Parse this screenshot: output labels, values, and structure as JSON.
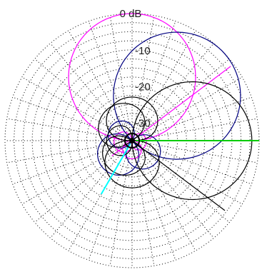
{
  "chart_data": {
    "type": "polar-radiation-pattern",
    "radial_axis": {
      "unit": "dB",
      "ring_levels_db": [
        0,
        -10,
        -20,
        -30
      ],
      "tick_labels": [
        "0 dB",
        "-10",
        "-20",
        "-30"
      ],
      "inner_ring_levels_db": [
        -2.5,
        -5,
        -7.5,
        -12.5,
        -15,
        -17.5,
        -22.5,
        -25,
        -27.5
      ],
      "grid": "dotted",
      "spoke_spacing_deg": 10
    },
    "grid": true,
    "legend": "none",
    "series": [
      {
        "color": "#ff00ff",
        "lobes": [
          {
            "direction_deg": 90,
            "peak_db": 0,
            "width": 1.0
          },
          {
            "direction_deg": 270,
            "peak_db": -30,
            "width": 0.9
          },
          {
            "direction_deg": 190,
            "peak_db": -30,
            "width": 0.7
          },
          {
            "direction_deg": 350,
            "peak_db": -31,
            "width": 0.7
          }
        ],
        "directions_deg": [
          37,
          217
        ],
        "direction_lines_db": [
          -1,
          -28
        ]
      },
      {
        "color": "#000080",
        "lobes": [
          {
            "direction_deg": 45,
            "peak_db": 0,
            "width": 1.0
          },
          {
            "direction_deg": 150,
            "peak_db": -28,
            "width": 0.8
          },
          {
            "direction_deg": 225,
            "peak_db": -24,
            "width": 0.85
          },
          {
            "direction_deg": 315,
            "peak_db": -26,
            "width": 0.8
          }
        ]
      },
      {
        "color": "#000000",
        "lobes": [
          {
            "direction_deg": 0,
            "peak_db": -2,
            "width": 1.05
          },
          {
            "direction_deg": 90,
            "peak_db": -23,
            "width": 0.6
          },
          {
            "direction_deg": 125,
            "peak_db": -24,
            "width": 0.55
          },
          {
            "direction_deg": 180,
            "peak_db": -28,
            "width": 0.6
          },
          {
            "direction_deg": 240,
            "peak_db": -25,
            "width": 0.55
          },
          {
            "direction_deg": 270,
            "peak_db": -22,
            "width": 0.65
          }
        ],
        "directions_deg": [
          -37
        ],
        "direction_lines_db": [
          -3
        ]
      }
    ],
    "reference_rays": [
      {
        "color": "#00cc00",
        "direction_deg": 0,
        "from_db": -34,
        "to_db": 0
      },
      {
        "color": "#00ffff",
        "direction_deg": 240,
        "from_db": -34,
        "to_db": -18
      }
    ]
  }
}
